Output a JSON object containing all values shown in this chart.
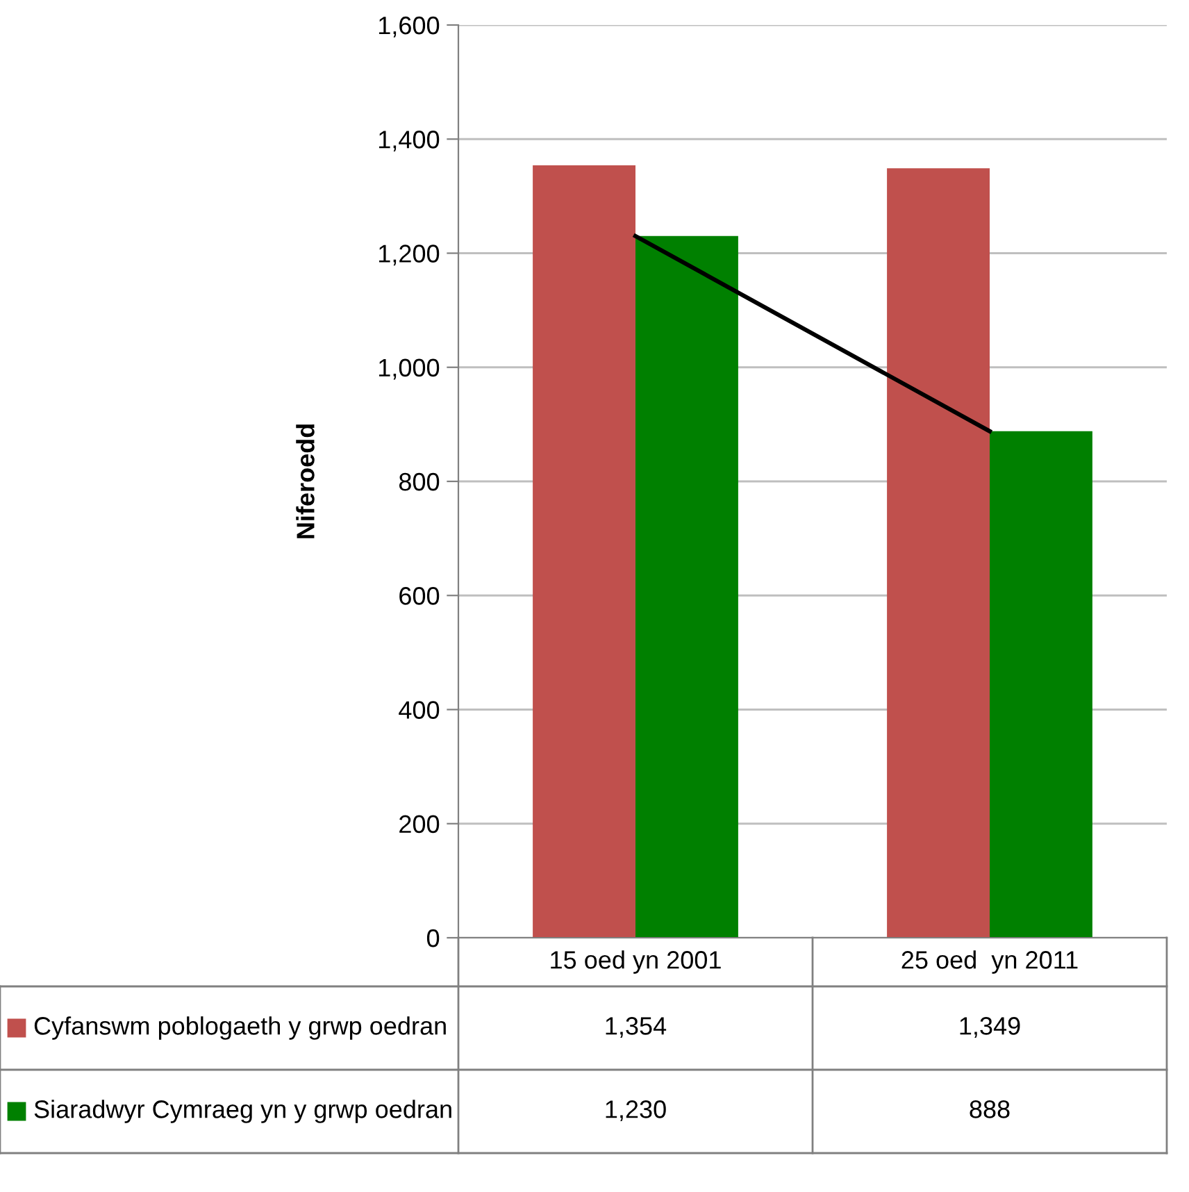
{
  "chart_data": {
    "type": "bar",
    "ylabel": "Niferoedd",
    "categories": [
      "15 oed yn 2001",
      "25 oed  yn 2011"
    ],
    "series": [
      {
        "name": "Cyfanswm poblogaeth y grwp oedran",
        "color": "#c0504d",
        "values": [
          1354,
          1349
        ],
        "value_labels": [
          "1,354",
          "1,349"
        ]
      },
      {
        "name": "Siaradwyr Cymraeg yn y grwp oedran",
        "color": "#008000",
        "values": [
          1230,
          888
        ],
        "value_labels": [
          "1,230",
          "888"
        ]
      },
      {
        "type": "line",
        "color": "#000000",
        "values": [
          1230,
          888
        ]
      }
    ],
    "ylim": [
      0,
      1600
    ],
    "yticks": [
      {
        "value": 0,
        "label": "0"
      },
      {
        "value": 200,
        "label": "200"
      },
      {
        "value": 400,
        "label": "400"
      },
      {
        "value": 600,
        "label": "600"
      },
      {
        "value": 800,
        "label": "800"
      },
      {
        "value": 1000,
        "label": "1,000"
      },
      {
        "value": 1200,
        "label": "1,200"
      },
      {
        "value": 1400,
        "label": "1,400"
      },
      {
        "value": 1600,
        "label": "1,600"
      }
    ],
    "grid": "y",
    "legend": "bottom"
  }
}
